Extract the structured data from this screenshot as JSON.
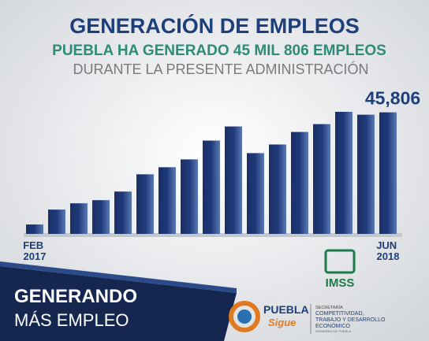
{
  "chart_data": {
    "type": "bar",
    "title": "GENERACIÓN DE EMPLEOS",
    "subtitle": "PUEBLA HA GENERADO 45 MIL 806 EMPLEOS",
    "note": "DURANTE LA PRESENTE ADMINISTRACIÓN",
    "categories": [
      "FEB 2017",
      null,
      null,
      null,
      null,
      null,
      null,
      null,
      null,
      null,
      null,
      null,
      null,
      null,
      null,
      null,
      "JUN 2018"
    ],
    "values": [
      3546,
      9161,
      11525,
      12707,
      15958,
      22460,
      25120,
      28075,
      35168,
      40487,
      30440,
      33690,
      38418,
      41374,
      46000,
      44920,
      45806
    ],
    "value_labels": [
      null,
      null,
      null,
      null,
      null,
      null,
      null,
      null,
      null,
      null,
      null,
      null,
      null,
      null,
      null,
      null,
      "45,806"
    ],
    "color": "#1f3a7a"
  },
  "logos": {
    "imss": "IMSS",
    "puebla": "PUEBLA",
    "sigue": "Sigue",
    "secretaria": "SECRETARÍA",
    "dept1": "COMPETITIVIDAD,",
    "dept2": "TRABAJO Y DESARROLLO",
    "dept3": "ECONÓMICO",
    "gobierno": "GOBIERNO DE PUEBLA"
  },
  "slogan": {
    "line1": "GENERANDO",
    "line2": "MÁS EMPLEO"
  }
}
